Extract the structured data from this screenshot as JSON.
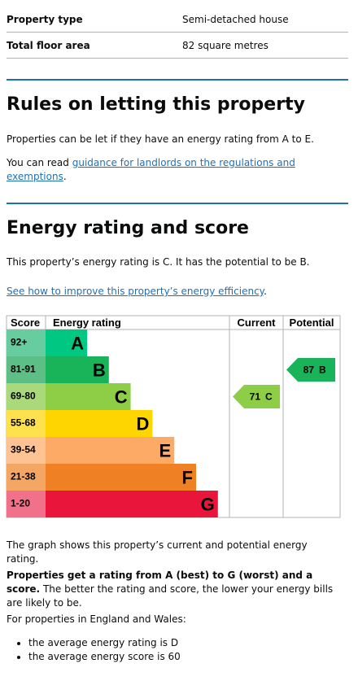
{
  "summary": {
    "rows": [
      [
        "Property type",
        "Semi-detached house"
      ],
      [
        "Total floor area",
        "82 square metres"
      ]
    ]
  },
  "letting": {
    "title": "Rules on letting this property",
    "para1": "Properties can be let if they have an energy rating from A to E.",
    "para2_prefix": "You can read ",
    "para2_link": "guidance for landlords on the regulations and exemptions",
    "para2_suffix": "."
  },
  "energy": {
    "title": "Energy rating and score",
    "intro": "This property’s energy rating is C. It has the potential to be B.",
    "link": "See how to improve this property’s energy efficiency",
    "link_suffix": ".",
    "chart": {
      "headers": [
        "Score",
        "Energy rating",
        "Current",
        "Potential"
      ],
      "bands": [
        {
          "score": "92+",
          "letter": "A",
          "color": "#00c781",
          "score_color": "#67cc9f"
        },
        {
          "score": "81-91",
          "letter": "B",
          "color": "#19b459",
          "score_color": "#5dbf85"
        },
        {
          "score": "69-80",
          "letter": "C",
          "color": "#8dce46",
          "score_color": "#a9d97a"
        },
        {
          "score": "55-68",
          "letter": "D",
          "color": "#ffd500",
          "score_color": "#ffe14d"
        },
        {
          "score": "39-54",
          "letter": "E",
          "color": "#fcaa65",
          "score_color": "#fdc393"
        },
        {
          "score": "21-38",
          "letter": "F",
          "color": "#ef8023",
          "score_color": "#f4a664"
        },
        {
          "score": "1-20",
          "letter": "G",
          "color": "#e9153b",
          "score_color": "#f07189"
        }
      ],
      "current": {
        "value": 71,
        "letter": "C"
      },
      "potential": {
        "value": 87,
        "letter": "B"
      }
    },
    "graph_note": "The graph shows this property’s current and potential energy rating.",
    "bold": "Properties get a rating from A (best) to G (worst) and a score.",
    "rest": " The better the rating and score, the lower your energy bills are likely to be.",
    "region": "For properties in England and Wales:",
    "list": [
      "the average energy rating is D",
      "the average energy score is 60"
    ]
  }
}
